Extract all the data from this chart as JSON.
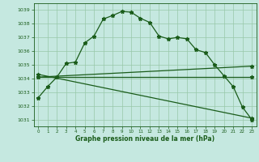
{
  "title": "Graphe pression niveau de la mer (hPa)",
  "background_color": "#c5e8e0",
  "grid_color": "#98c8a8",
  "line_color": "#1a5c1a",
  "xlim": [
    -0.5,
    23.5
  ],
  "ylim": [
    1030.5,
    1039.5
  ],
  "yticks": [
    1031,
    1032,
    1033,
    1034,
    1035,
    1036,
    1037,
    1038,
    1039
  ],
  "xticks": [
    0,
    1,
    2,
    3,
    4,
    5,
    6,
    7,
    8,
    9,
    10,
    11,
    12,
    13,
    14,
    15,
    16,
    17,
    18,
    19,
    20,
    21,
    22,
    23
  ],
  "series1_x": [
    0,
    1,
    2,
    3,
    4,
    5,
    6,
    7,
    8,
    9,
    10,
    11,
    12,
    13,
    14,
    15,
    16,
    17,
    18,
    19,
    20,
    21,
    22,
    23
  ],
  "series1_y": [
    1032.6,
    1033.4,
    1034.1,
    1035.1,
    1035.2,
    1036.6,
    1037.1,
    1038.35,
    1038.6,
    1038.9,
    1038.85,
    1038.4,
    1038.1,
    1037.1,
    1036.9,
    1037.0,
    1036.9,
    1036.1,
    1035.9,
    1035.0,
    1034.2,
    1033.4,
    1031.9,
    1031.0
  ],
  "series2_x": [
    0,
    23
  ],
  "series2_y": [
    1034.1,
    1034.1
  ],
  "series3_x": [
    0,
    23
  ],
  "series3_y": [
    1034.1,
    1034.9
  ],
  "series4_x": [
    0,
    23
  ],
  "series4_y": [
    1034.3,
    1031.1
  ],
  "marker": "*",
  "markersize": 3.5,
  "linewidth": 0.9
}
